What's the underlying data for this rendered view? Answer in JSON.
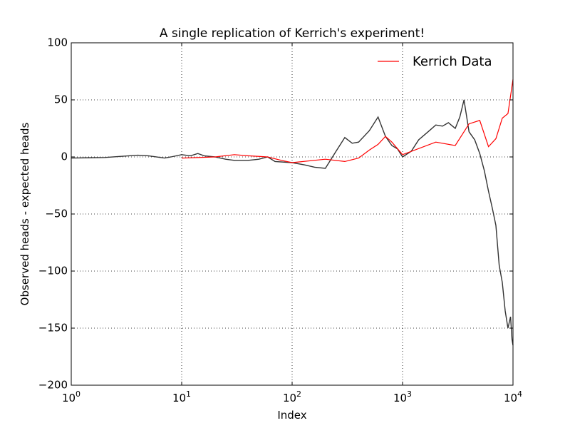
{
  "chart_data": {
    "type": "line",
    "title": "A single replication of Kerrich's experiment!",
    "xlabel": "Index",
    "ylabel": "Observed heads - expected heads",
    "xscale": "log",
    "xlim": [
      1,
      10000
    ],
    "ylim": [
      -200,
      100
    ],
    "grid": true,
    "legend_position": "top-right",
    "x_ticks": [
      {
        "value": 1,
        "base": "10",
        "exp": "0"
      },
      {
        "value": 10,
        "base": "10",
        "exp": "1"
      },
      {
        "value": 100,
        "base": "10",
        "exp": "2"
      },
      {
        "value": 1000,
        "base": "10",
        "exp": "3"
      },
      {
        "value": 10000,
        "base": "10",
        "exp": "4"
      }
    ],
    "y_ticks": [
      {
        "value": 100,
        "label": "100"
      },
      {
        "value": 50,
        "label": "50"
      },
      {
        "value": 0,
        "label": "0"
      },
      {
        "value": -50,
        "label": "−50"
      },
      {
        "value": -100,
        "label": "−100"
      },
      {
        "value": -150,
        "label": "−150"
      },
      {
        "value": -200,
        "label": "−200"
      }
    ],
    "series": [
      {
        "color": "#333333",
        "points": [
          [
            1,
            -1
          ],
          [
            2,
            -0.5
          ],
          [
            4,
            1.5
          ],
          [
            5,
            1
          ],
          [
            7,
            -1
          ],
          [
            8,
            0
          ],
          [
            10,
            2
          ],
          [
            12,
            1
          ],
          [
            14,
            3
          ],
          [
            16,
            1
          ],
          [
            20,
            0
          ],
          [
            25,
            -2
          ],
          [
            30,
            -3
          ],
          [
            40,
            -3
          ],
          [
            50,
            -2
          ],
          [
            60,
            0
          ],
          [
            70,
            -4
          ],
          [
            100,
            -5
          ],
          [
            130,
            -7
          ],
          [
            160,
            -9
          ],
          [
            200,
            -10
          ],
          [
            250,
            5
          ],
          [
            300,
            17
          ],
          [
            350,
            12
          ],
          [
            400,
            13
          ],
          [
            500,
            23
          ],
          [
            600,
            35
          ],
          [
            700,
            18
          ],
          [
            800,
            10
          ],
          [
            900,
            7
          ],
          [
            1000,
            0
          ],
          [
            1200,
            5
          ],
          [
            1400,
            15
          ],
          [
            1700,
            22
          ],
          [
            2000,
            28
          ],
          [
            2300,
            27
          ],
          [
            2600,
            30
          ],
          [
            3000,
            25
          ],
          [
            3300,
            35
          ],
          [
            3600,
            50
          ],
          [
            4000,
            22
          ],
          [
            4500,
            15
          ],
          [
            5000,
            3
          ],
          [
            5500,
            -12
          ],
          [
            6000,
            -30
          ],
          [
            6500,
            -45
          ],
          [
            7000,
            -60
          ],
          [
            7500,
            -95
          ],
          [
            8000,
            -110
          ],
          [
            8500,
            -135
          ],
          [
            9000,
            -150
          ],
          [
            9500,
            -140
          ],
          [
            9800,
            -160
          ],
          [
            10000,
            -165
          ]
        ]
      },
      {
        "name": "Kerrich Data",
        "color": "#ff0000",
        "points": [
          [
            10,
            -1
          ],
          [
            20,
            0
          ],
          [
            30,
            2
          ],
          [
            40,
            1
          ],
          [
            60,
            0
          ],
          [
            80,
            -3
          ],
          [
            100,
            -5
          ],
          [
            200,
            -2
          ],
          [
            300,
            -4
          ],
          [
            400,
            -1
          ],
          [
            500,
            6
          ],
          [
            600,
            11
          ],
          [
            700,
            18
          ],
          [
            800,
            13
          ],
          [
            1000,
            2
          ],
          [
            2000,
            13
          ],
          [
            3000,
            10
          ],
          [
            4000,
            29
          ],
          [
            5000,
            32
          ],
          [
            6000,
            9
          ],
          [
            7000,
            16
          ],
          [
            8000,
            34
          ],
          [
            9000,
            38
          ],
          [
            10000,
            68
          ]
        ]
      }
    ]
  }
}
